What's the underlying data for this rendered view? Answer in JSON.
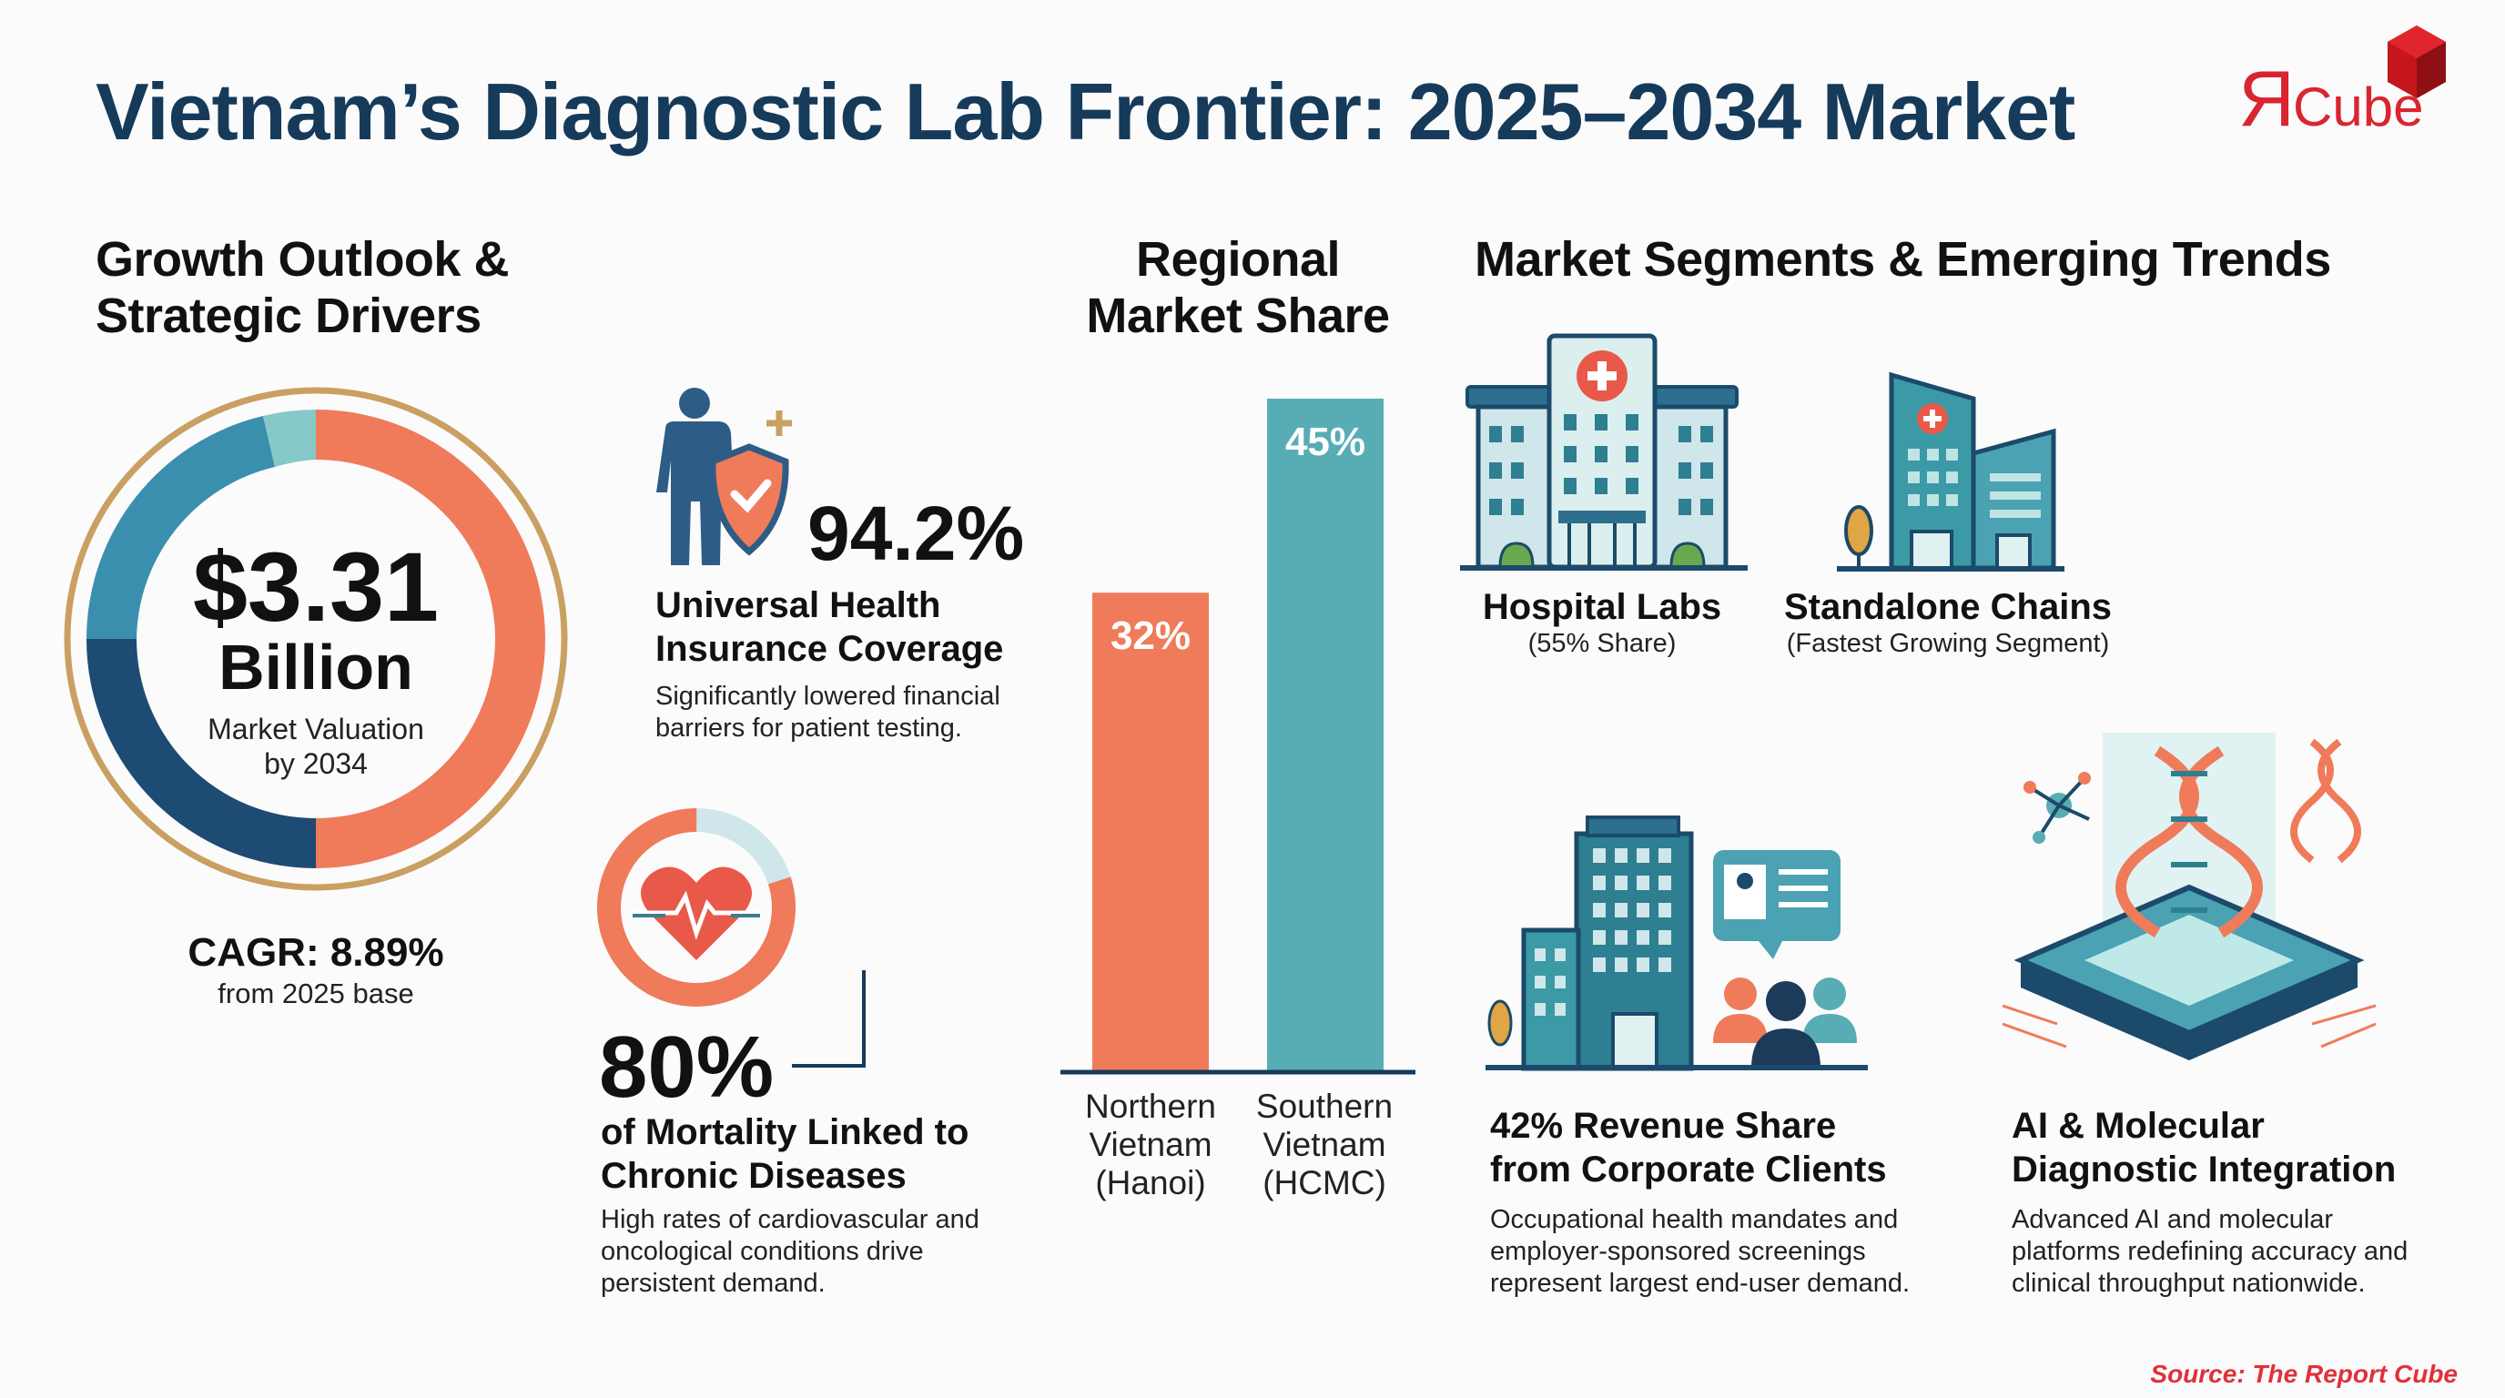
{
  "header": {
    "title": "Vietnam’s Diagnostic Lab Frontier: 2025–2034 Market",
    "logo_text": "ЯCube"
  },
  "growth": {
    "heading_line1": "Growth Outlook &",
    "heading_line2": "Strategic Drivers",
    "valuation": "$3.31",
    "valuation_unit": "Billion",
    "valuation_label_line1": "Market Valuation",
    "valuation_label_line2": "by 2034",
    "cagr": "CAGR: 8.89%",
    "cagr_note": "from 2025 base"
  },
  "drivers": [
    {
      "value": "94.2%",
      "title_line1": "Universal Health",
      "title_line2": "Insurance Coverage",
      "desc_line1": "Significantly lowered financial",
      "desc_line2": "barriers for patient testing.",
      "icon": "person-shield-icon"
    },
    {
      "value": "80%",
      "ring_fill_fraction": 0.8,
      "title_line1": "of Mortality Linked to",
      "title_line2": "Chronic Diseases",
      "desc_line1": "High rates of cardiovascular and",
      "desc_line2": "oncological conditions drive",
      "desc_line3": "persistent demand.",
      "icon": "heart-pulse-icon"
    }
  ],
  "chart_data": {
    "type": "bar",
    "title": "Regional Market Share",
    "title_line1": "Regional",
    "title_line2": "Market Share",
    "categories": [
      "Northern Vietnam (Hanoi)",
      "Southern Vietnam (HCMC)"
    ],
    "category_lines": [
      [
        "Northern",
        "Vietnam",
        "(Hanoi)"
      ],
      [
        "Southern",
        "Vietnam",
        "(HCMC)"
      ]
    ],
    "values": [
      32,
      45
    ],
    "data_labels": [
      "32%",
      "45%"
    ],
    "colors": [
      "#ef7b5a",
      "#58adb5"
    ],
    "unit": "%",
    "grid": false
  },
  "segments": {
    "heading": "Market Segments & Emerging Trends",
    "items": [
      {
        "title": "Hospital Labs",
        "subtitle": "(55% Share)",
        "icon": "hospital-icon"
      },
      {
        "title": "Standalone Chains",
        "subtitle": "(Fastest Growing Segment)",
        "icon": "clinic-building-icon"
      }
    ],
    "trends": [
      {
        "title_line1": "42% Revenue Share",
        "title_line2": "from Corporate Clients",
        "desc_line1": "Occupational health mandates and",
        "desc_line2": "employer-sponsored screenings",
        "desc_line3": "represent largest end-user demand.",
        "icon": "corporate-office-icon"
      },
      {
        "title_line1": "AI & Molecular",
        "title_line2": "Diagnostic Integration",
        "desc_line1": "Advanced AI and molecular",
        "desc_line2": "platforms redefining accuracy and",
        "desc_line3": "clinical throughput nationwide.",
        "icon": "dna-chip-icon"
      }
    ]
  },
  "footer": {
    "source": "Source: The Report Cube"
  },
  "colors": {
    "navy": "#163a5a",
    "coral": "#ef7b5a",
    "teal": "#58adb5",
    "gold": "#c9a062",
    "brand_red": "#d9252f"
  }
}
